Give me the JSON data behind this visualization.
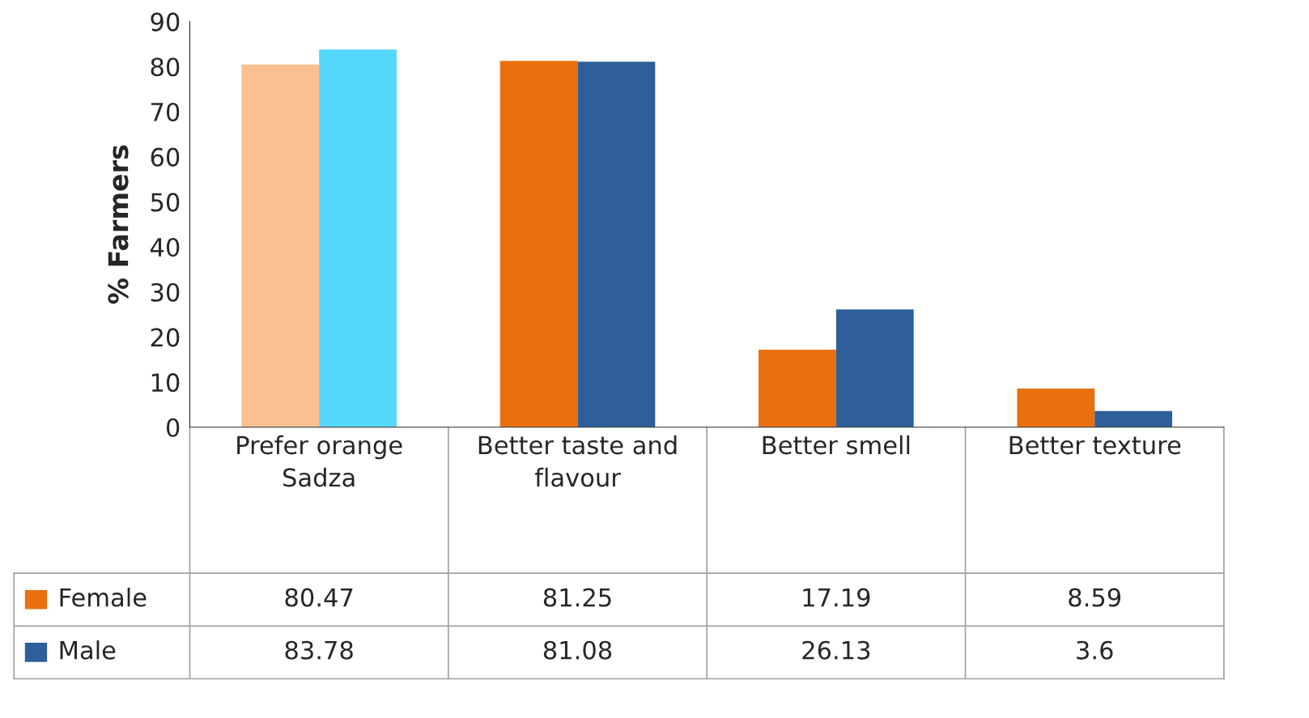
{
  "chart_data": {
    "type": "bar",
    "ylabel": "% Farmers",
    "categories": [
      "Prefer orange Sadza",
      "Better taste and flavour",
      "Better smell",
      "Better texture"
    ],
    "series": [
      {
        "name": "Female",
        "color": "#e8700f",
        "colors": [
          "#fbc08f",
          "#e8700f",
          "#e8700f",
          "#e8700f"
        ],
        "values": [
          80.47,
          81.25,
          17.19,
          8.59
        ]
      },
      {
        "name": "Male",
        "color": "#2e5f9a",
        "colors": [
          "#55d6fb",
          "#2e5f9a",
          "#2e5f9a",
          "#2e5f9a"
        ],
        "values": [
          83.78,
          81.08,
          26.13,
          3.6
        ]
      }
    ],
    "ylim": [
      0,
      90
    ],
    "yticks": [
      0,
      10,
      20,
      30,
      40,
      50,
      60,
      70,
      80,
      90
    ],
    "grid": false,
    "legend": "bottom left",
    "data_labels": true
  }
}
